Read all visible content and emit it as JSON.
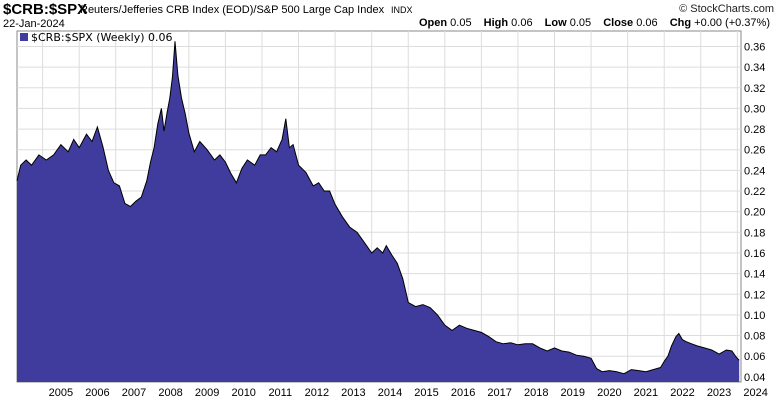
{
  "header": {
    "symbol": "$CRB:$SPX",
    "description": "Reuters/Jefferies CRB Index (EOD)/S&P 500 Large Cap Index",
    "exchange": "INDX",
    "brand": "© StockCharts.com",
    "date": "22-Jan-2024",
    "quote": [
      {
        "label": "Open",
        "value": "0.05"
      },
      {
        "label": "High",
        "value": "0.06"
      },
      {
        "label": "Low",
        "value": "0.05"
      },
      {
        "label": "Close",
        "value": "0.06"
      },
      {
        "label": "Chg",
        "value": "+0.00 (+0.37%)"
      }
    ]
  },
  "chart_data": {
    "type": "area",
    "legend": "$CRB:$SPX (Weekly) 0.06",
    "series_color": "#3f3c9d",
    "x_start": 2004.3,
    "x_end": 2024.1,
    "ylim": [
      0.035,
      0.375
    ],
    "y_ticks": [
      0.04,
      0.06,
      0.08,
      0.1,
      0.12,
      0.14,
      0.16,
      0.18,
      0.2,
      0.22,
      0.24,
      0.26,
      0.28,
      0.3,
      0.32,
      0.34,
      0.36
    ],
    "y_tick_labels": [
      "0.04",
      "0.06",
      "0.08",
      "0.10",
      "0.12",
      "0.14",
      "0.16",
      "0.18",
      "0.20",
      "0.22",
      "0.24",
      "0.26",
      "0.28",
      "0.30",
      "0.32",
      "0.34",
      "0.36"
    ],
    "x_ticks": [
      2005,
      2006,
      2007,
      2008,
      2009,
      2010,
      2011,
      2012,
      2013,
      2014,
      2015,
      2016,
      2017,
      2018,
      2019,
      2020,
      2021,
      2022,
      2023,
      2024
    ],
    "x_tick_labels": [
      "2005",
      "2006",
      "2007",
      "2008",
      "2009",
      "2010",
      "2011",
      "2012",
      "2013",
      "2014",
      "2015",
      "2016",
      "2017",
      "2018",
      "2019",
      "2020",
      "2021",
      "2022",
      "2023",
      "2024"
    ],
    "points": [
      [
        2004.3,
        0.23
      ],
      [
        2004.4,
        0.245
      ],
      [
        2004.55,
        0.25
      ],
      [
        2004.7,
        0.245
      ],
      [
        2004.9,
        0.255
      ],
      [
        2005.1,
        0.25
      ],
      [
        2005.3,
        0.255
      ],
      [
        2005.5,
        0.265
      ],
      [
        2005.7,
        0.258
      ],
      [
        2005.85,
        0.27
      ],
      [
        2006.0,
        0.262
      ],
      [
        2006.2,
        0.275
      ],
      [
        2006.35,
        0.268
      ],
      [
        2006.5,
        0.282
      ],
      [
        2006.65,
        0.263
      ],
      [
        2006.8,
        0.24
      ],
      [
        2006.95,
        0.228
      ],
      [
        2007.1,
        0.225
      ],
      [
        2007.25,
        0.208
      ],
      [
        2007.4,
        0.205
      ],
      [
        2007.55,
        0.21
      ],
      [
        2007.7,
        0.214
      ],
      [
        2007.85,
        0.23
      ],
      [
        2007.95,
        0.248
      ],
      [
        2008.05,
        0.262
      ],
      [
        2008.15,
        0.285
      ],
      [
        2008.25,
        0.3
      ],
      [
        2008.32,
        0.278
      ],
      [
        2008.4,
        0.295
      ],
      [
        2008.48,
        0.31
      ],
      [
        2008.55,
        0.33
      ],
      [
        2008.62,
        0.365
      ],
      [
        2008.7,
        0.332
      ],
      [
        2008.8,
        0.31
      ],
      [
        2008.9,
        0.295
      ],
      [
        2009.0,
        0.276
      ],
      [
        2009.15,
        0.258
      ],
      [
        2009.3,
        0.268
      ],
      [
        2009.5,
        0.26
      ],
      [
        2009.7,
        0.25
      ],
      [
        2009.85,
        0.255
      ],
      [
        2010.0,
        0.248
      ],
      [
        2010.15,
        0.237
      ],
      [
        2010.3,
        0.228
      ],
      [
        2010.45,
        0.242
      ],
      [
        2010.6,
        0.25
      ],
      [
        2010.8,
        0.245
      ],
      [
        2010.95,
        0.255
      ],
      [
        2011.1,
        0.255
      ],
      [
        2011.25,
        0.262
      ],
      [
        2011.4,
        0.258
      ],
      [
        2011.55,
        0.27
      ],
      [
        2011.65,
        0.29
      ],
      [
        2011.75,
        0.262
      ],
      [
        2011.85,
        0.265
      ],
      [
        2012.0,
        0.245
      ],
      [
        2012.2,
        0.238
      ],
      [
        2012.4,
        0.225
      ],
      [
        2012.55,
        0.228
      ],
      [
        2012.7,
        0.22
      ],
      [
        2012.85,
        0.22
      ],
      [
        2013.0,
        0.207
      ],
      [
        2013.2,
        0.195
      ],
      [
        2013.4,
        0.185
      ],
      [
        2013.6,
        0.18
      ],
      [
        2013.8,
        0.17
      ],
      [
        2014.0,
        0.16
      ],
      [
        2014.15,
        0.165
      ],
      [
        2014.3,
        0.16
      ],
      [
        2014.4,
        0.167
      ],
      [
        2014.55,
        0.158
      ],
      [
        2014.7,
        0.15
      ],
      [
        2014.85,
        0.135
      ],
      [
        2015.0,
        0.112
      ],
      [
        2015.2,
        0.108
      ],
      [
        2015.4,
        0.11
      ],
      [
        2015.6,
        0.107
      ],
      [
        2015.8,
        0.1
      ],
      [
        2016.0,
        0.09
      ],
      [
        2016.2,
        0.085
      ],
      [
        2016.4,
        0.09
      ],
      [
        2016.6,
        0.087
      ],
      [
        2016.8,
        0.085
      ],
      [
        2017.0,
        0.083
      ],
      [
        2017.2,
        0.079
      ],
      [
        2017.4,
        0.074
      ],
      [
        2017.6,
        0.072
      ],
      [
        2017.8,
        0.073
      ],
      [
        2018.0,
        0.071
      ],
      [
        2018.2,
        0.072
      ],
      [
        2018.4,
        0.072
      ],
      [
        2018.6,
        0.068
      ],
      [
        2018.8,
        0.065
      ],
      [
        2019.0,
        0.068
      ],
      [
        2019.2,
        0.065
      ],
      [
        2019.4,
        0.064
      ],
      [
        2019.6,
        0.061
      ],
      [
        2019.8,
        0.06
      ],
      [
        2020.0,
        0.058
      ],
      [
        2020.15,
        0.048
      ],
      [
        2020.3,
        0.045
      ],
      [
        2020.5,
        0.046
      ],
      [
        2020.7,
        0.045
      ],
      [
        2020.9,
        0.043
      ],
      [
        2021.1,
        0.047
      ],
      [
        2021.3,
        0.046
      ],
      [
        2021.5,
        0.045
      ],
      [
        2021.7,
        0.047
      ],
      [
        2021.9,
        0.049
      ],
      [
        2022.0,
        0.055
      ],
      [
        2022.1,
        0.06
      ],
      [
        2022.2,
        0.07
      ],
      [
        2022.32,
        0.079
      ],
      [
        2022.4,
        0.082
      ],
      [
        2022.5,
        0.076
      ],
      [
        2022.6,
        0.074
      ],
      [
        2022.75,
        0.072
      ],
      [
        2022.9,
        0.07
      ],
      [
        2023.1,
        0.068
      ],
      [
        2023.3,
        0.066
      ],
      [
        2023.5,
        0.062
      ],
      [
        2023.7,
        0.066
      ],
      [
        2023.85,
        0.065
      ],
      [
        2023.95,
        0.06
      ],
      [
        2024.05,
        0.056
      ]
    ]
  }
}
